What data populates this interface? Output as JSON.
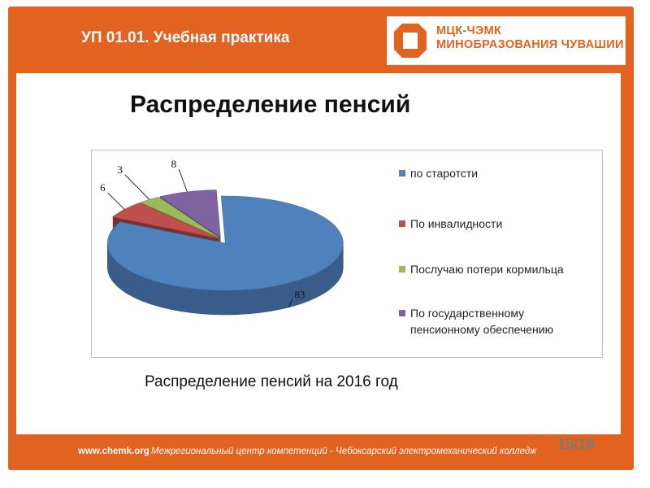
{
  "header": {
    "title": "УП 01.01. Учебная практика"
  },
  "logo": {
    "line1": "МЦК-ЧЭМК",
    "line2": "МИНОБРАЗОВАНИЯ ЧУВАШИИ"
  },
  "slide": {
    "title": "Распределение пенсий",
    "caption": "Распределение пенсий на 2016 год"
  },
  "footer": {
    "url": "www.chemk.org",
    "org": "Межрегиональный центр компетенций - Чебоксарский электромеханический колледж",
    "page": "15/19"
  },
  "colors": {
    "frame": "#e1631f",
    "logo": "#e1631f"
  },
  "chart_data": {
    "type": "pie",
    "style": "3d-exploded",
    "title": "",
    "legend_position": "right",
    "categories": [
      "по старотсти",
      "По инвалидности",
      "Послучаю потери кормильца",
      "По государственному пенсионному обеспечению"
    ],
    "values": [
      83,
      6,
      3,
      8
    ],
    "data_labels": [
      "83",
      "6",
      "3",
      "8"
    ],
    "colors": [
      "#4f81bd",
      "#c0504d",
      "#9bbb59",
      "#8064a2"
    ]
  }
}
